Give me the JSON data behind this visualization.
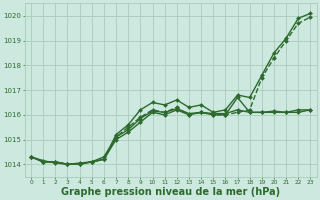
{
  "background_color": "#cce8df",
  "grid_color": "#aaccbb",
  "line_color": "#2d6a2d",
  "marker_color": "#2d6a2d",
  "xlabel": "Graphe pression niveau de la mer (hPa)",
  "xlabel_fontsize": 7.0,
  "xlim": [
    -0.5,
    23.5
  ],
  "ylim": [
    1013.5,
    1020.5
  ],
  "yticks": [
    1014,
    1015,
    1016,
    1017,
    1018,
    1019,
    1020
  ],
  "xticks": [
    0,
    1,
    2,
    3,
    4,
    5,
    6,
    7,
    8,
    9,
    10,
    11,
    12,
    13,
    14,
    15,
    16,
    17,
    18,
    19,
    20,
    21,
    22,
    23
  ],
  "series": [
    {
      "y": [
        1014.3,
        1014.1,
        1014.1,
        1014.0,
        1014.0,
        1014.1,
        1014.2,
        1015.2,
        1015.6,
        1016.2,
        1016.5,
        1016.4,
        1016.6,
        1016.3,
        1016.4,
        1016.1,
        1016.2,
        1016.8,
        1016.7,
        1017.6,
        1018.5,
        1019.1,
        1019.9,
        1020.1
      ],
      "marker": "D",
      "lw": 1.0,
      "ms": 2.0,
      "dashed": false
    },
    {
      "y": [
        1014.3,
        1014.1,
        1014.1,
        1014.0,
        1014.0,
        1014.1,
        1014.2,
        1015.1,
        1015.5,
        1015.9,
        1016.2,
        1016.1,
        1016.3,
        1016.0,
        1016.1,
        1016.0,
        1016.0,
        1016.1,
        1016.2,
        1017.5,
        1018.3,
        1019.0,
        1019.7,
        1019.95
      ],
      "marker": "D",
      "lw": 1.0,
      "ms": 2.0,
      "dashed": true
    },
    {
      "y": [
        1014.3,
        1014.1,
        1014.1,
        1014.0,
        1014.0,
        1014.1,
        1014.2,
        1015.0,
        1015.3,
        1015.7,
        1016.1,
        1016.0,
        1016.2,
        1016.0,
        1016.1,
        1016.0,
        1016.0,
        1016.7,
        1016.1,
        1016.1,
        1016.1,
        1016.1,
        1016.2,
        1016.2
      ],
      "marker": "D",
      "lw": 1.0,
      "ms": 2.0,
      "dashed": false
    },
    {
      "y": [
        1014.3,
        1014.15,
        1014.05,
        1014.0,
        1014.05,
        1014.1,
        1014.3,
        1015.1,
        1015.4,
        1015.85,
        1016.15,
        1016.1,
        1016.25,
        1016.05,
        1016.1,
        1016.05,
        1016.05,
        1016.2,
        1016.1,
        1016.1,
        1016.15,
        1016.1,
        1016.1,
        1016.2
      ],
      "marker": "D",
      "lw": 1.0,
      "ms": 2.0,
      "dashed": false
    }
  ]
}
